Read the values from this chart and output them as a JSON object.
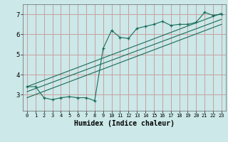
{
  "bg_color": "#cce8e8",
  "grid_color": "#c8a0a0",
  "line_color": "#1a6b5a",
  "xlabel": "Humidex (Indice chaleur)",
  "xlim": [
    -0.5,
    23.5
  ],
  "ylim": [
    2.2,
    7.5
  ],
  "yticks": [
    3,
    4,
    5,
    6,
    7
  ],
  "xticks": [
    0,
    1,
    2,
    3,
    4,
    5,
    6,
    7,
    8,
    9,
    10,
    11,
    12,
    13,
    14,
    15,
    16,
    17,
    18,
    19,
    20,
    21,
    22,
    23
  ],
  "line1_x": [
    0,
    1,
    2,
    3,
    4,
    5,
    6,
    7,
    8,
    9,
    10,
    11,
    12,
    13,
    14,
    15,
    16,
    17,
    18,
    19,
    20,
    21,
    22,
    23
  ],
  "line1_y": [
    3.4,
    3.4,
    2.85,
    2.75,
    2.85,
    2.9,
    2.85,
    2.85,
    2.7,
    5.3,
    6.2,
    5.85,
    5.8,
    6.3,
    6.4,
    6.5,
    6.65,
    6.45,
    6.5,
    6.5,
    6.6,
    7.1,
    6.95,
    7.0
  ],
  "line2_x": [
    0,
    23
  ],
  "line2_y": [
    3.4,
    7.05
  ],
  "line3_x": [
    0,
    23
  ],
  "line3_y": [
    3.15,
    6.75
  ],
  "line4_x": [
    0,
    23
  ],
  "line4_y": [
    2.85,
    6.5
  ]
}
